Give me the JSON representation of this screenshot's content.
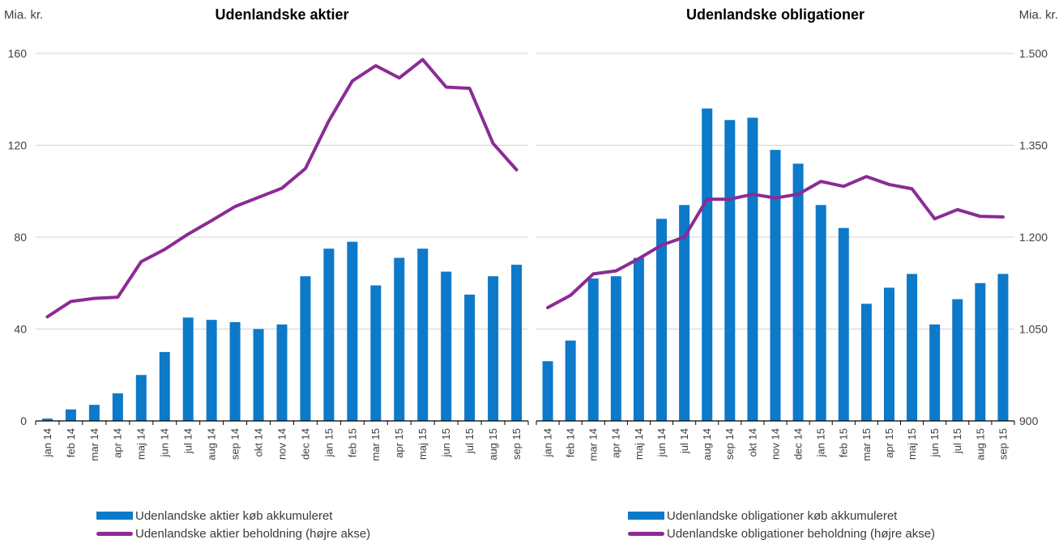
{
  "axes": {
    "left_unit_label": "Mia. kr.",
    "right_unit_label": "Mia. kr.",
    "left_tick_labels": [
      "0",
      "40",
      "80",
      "120",
      "160"
    ],
    "right_tick_labels": [
      "900",
      "1.050",
      "1.200",
      "1.350",
      "1.500"
    ]
  },
  "colors": {
    "background": "#ffffff",
    "bar": "#0d79c9",
    "line": "#8b2b95",
    "grid": "#d9d9d9",
    "axis": "#000000",
    "tick_text": "#3f3f3f",
    "title_text": "#000000"
  },
  "chart_data": [
    {
      "type": "bar+line",
      "title": "Udenlandske aktier",
      "categories": [
        "jan 14",
        "feb 14",
        "mar 14",
        "apr 14",
        "maj 14",
        "jun 14",
        "jul 14",
        "aug 14",
        "sep 14",
        "okt 14",
        "nov 14",
        "dec 14",
        "jan 15",
        "feb 15",
        "mar 15",
        "apr 15",
        "maj 15",
        "jun 15",
        "jul 15",
        "aug 15",
        "sep 15"
      ],
      "series": [
        {
          "name": "Udenlandske aktier køb akkumuleret",
          "type": "bar",
          "axis": "left",
          "values": [
            1,
            5,
            7,
            12,
            20,
            30,
            45,
            44,
            43,
            40,
            42,
            63,
            75,
            78,
            59,
            71,
            75,
            65,
            55,
            63,
            68
          ]
        },
        {
          "name": "Udenlandske aktier beholdning (højre akse)",
          "type": "line",
          "axis": "right",
          "values": [
            1070,
            1095,
            1100,
            1102,
            1160,
            1180,
            1205,
            1227,
            1250,
            1265,
            1280,
            1312,
            1390,
            1455,
            1480,
            1460,
            1490,
            1445,
            1443,
            1353,
            1310
          ]
        }
      ],
      "left_axis": {
        "label": "Mia. kr.",
        "range": [
          0,
          160
        ],
        "ticks": [
          0,
          40,
          80,
          120,
          160
        ]
      },
      "right_axis": {
        "label": "Mia. kr.",
        "range": [
          900,
          1500
        ],
        "ticks": [
          900,
          1050,
          1200,
          1350,
          1500
        ]
      },
      "grid": true,
      "legend_position": "bottom"
    },
    {
      "type": "bar+line",
      "title": "Udenlandske obligationer",
      "categories": [
        "jan 14",
        "feb 14",
        "mar 14",
        "apr 14",
        "maj 14",
        "jun 14",
        "jul 14",
        "aug 14",
        "sep 14",
        "okt 14",
        "nov 14",
        "dec 14",
        "jan 15",
        "feb 15",
        "mar 15",
        "apr 15",
        "maj 15",
        "jun 15",
        "jul 15",
        "aug 15",
        "sep 15"
      ],
      "series": [
        {
          "name": "Udenlandske obligationer køb akkumuleret",
          "type": "bar",
          "axis": "left",
          "values": [
            26,
            35,
            62,
            63,
            71,
            88,
            94,
            136,
            131,
            132,
            118,
            112,
            94,
            84,
            51,
            58,
            64,
            42,
            53,
            60,
            64
          ]
        },
        {
          "name": "Udenlandske obligationer beholdning (højre akse)",
          "type": "line",
          "axis": "right",
          "values": [
            1085,
            1105,
            1140,
            1145,
            1165,
            1187,
            1200,
            1262,
            1262,
            1270,
            1264,
            1270,
            1291,
            1283,
            1299,
            1286,
            1279,
            1230,
            1245,
            1234,
            1233
          ]
        }
      ],
      "left_axis": {
        "label": "Mia. kr.",
        "range": [
          0,
          160
        ],
        "ticks": [
          0,
          40,
          80,
          120,
          160
        ]
      },
      "right_axis": {
        "label": "Mia. kr.",
        "range": [
          900,
          1500
        ],
        "ticks": [
          900,
          1050,
          1200,
          1350,
          1500
        ]
      },
      "grid": true,
      "legend_position": "bottom"
    }
  ]
}
